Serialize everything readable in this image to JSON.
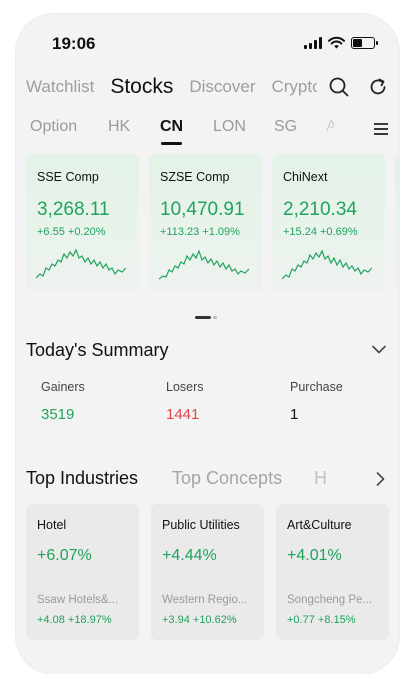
{
  "status_bar": {
    "time": "19:06",
    "icons": [
      "signal-icon",
      "wifi-icon",
      "battery-icon"
    ]
  },
  "top_nav": {
    "tabs": [
      {
        "label": "Watchlist",
        "active": false
      },
      {
        "label": "Stocks",
        "active": true
      },
      {
        "label": "Discover",
        "active": false
      },
      {
        "label": "Crypto",
        "active": false
      }
    ],
    "icons": [
      "search-icon",
      "refresh-icon"
    ]
  },
  "market_tabs": {
    "tabs": [
      {
        "label": "Option",
        "active": false
      },
      {
        "label": "HK",
        "active": false
      },
      {
        "label": "CN",
        "active": true
      },
      {
        "label": "LON",
        "active": false
      },
      {
        "label": "SG",
        "active": false
      },
      {
        "label": "A",
        "active": false
      }
    ],
    "menu_icon": "menu-icon"
  },
  "indices": [
    {
      "name": "SSE Comp",
      "value": "3,268.11",
      "change": "+6.55 +0.20%"
    },
    {
      "name": "SZSE Comp",
      "value": "10,470.91",
      "change": "+113.23 +1.09%"
    },
    {
      "name": "ChiNext",
      "value": "2,210.34",
      "change": "+15.24 +0.69%"
    }
  ],
  "summary": {
    "title": "Today's Summary",
    "items": [
      {
        "label": "Gainers",
        "value": "3519"
      },
      {
        "label": "Losers",
        "value": "1441"
      },
      {
        "label": "Purchase",
        "value": "1"
      }
    ]
  },
  "industry_tabs": {
    "tabs": [
      {
        "label": "Top Industries",
        "active": true
      },
      {
        "label": "Top Concepts",
        "active": false
      },
      {
        "label": "H",
        "active": false
      }
    ]
  },
  "industries": [
    {
      "name": "Hotel",
      "change": "+6.07%",
      "leader": "Ssaw Hotels&...",
      "leader_change": "+4.08 +18.97%"
    },
    {
      "name": "Public Utilities",
      "change": "+4.44%",
      "leader": "Western Regio...",
      "leader_change": "+3.94 +10.62%"
    },
    {
      "name": "Art&Culture",
      "change": "+4.01%",
      "leader": "Songcheng Pe...",
      "leader_change": "+0.77 +8.15%"
    }
  ],
  "colors": {
    "up": "#1fa35d",
    "down": "#e0474c",
    "text": "#111111",
    "muted": "#9e9e9e"
  }
}
